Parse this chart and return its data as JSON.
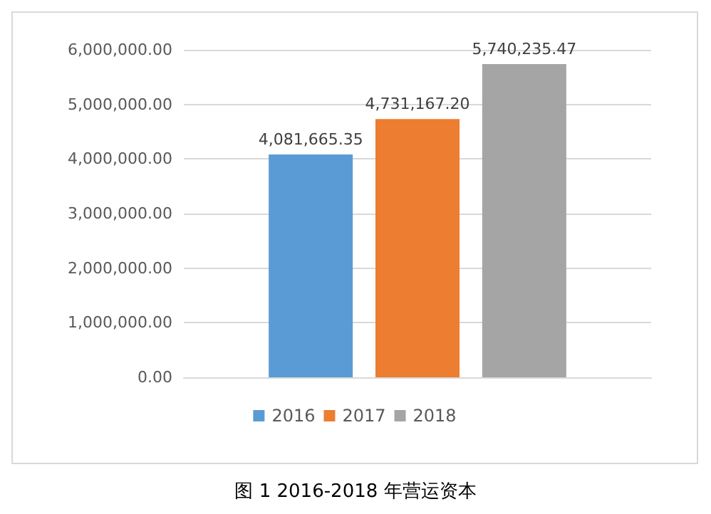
{
  "chart_data": {
    "type": "bar",
    "categories": [
      null
    ],
    "series": [
      {
        "name": "2016",
        "color": "#5b9bd5",
        "values": [
          4081665.35
        ],
        "value_labels": [
          "4,081,665.35"
        ]
      },
      {
        "name": "2017",
        "color": "#ed7d31",
        "values": [
          4731167.2
        ],
        "value_labels": [
          "4,731,167.20"
        ]
      },
      {
        "name": "2018",
        "color": "#a5a5a5",
        "values": [
          5740235.47
        ],
        "value_labels": [
          "5,740,235.47"
        ]
      }
    ],
    "ylim": [
      0,
      6000000
    ],
    "yticks": [
      {
        "value": 0,
        "label": "0.00"
      },
      {
        "value": 1000000,
        "label": "1,000,000.00"
      },
      {
        "value": 2000000,
        "label": "2,000,000.00"
      },
      {
        "value": 3000000,
        "label": "3,000,000.00"
      },
      {
        "value": 4000000,
        "label": "4,000,000.00"
      },
      {
        "value": 5000000,
        "label": "5,000,000.00"
      },
      {
        "value": 6000000,
        "label": "6,000,000.00"
      }
    ],
    "grid": "y",
    "legend": "bottom",
    "annotations": [
      "图 1 2016-2018 年营运资本"
    ]
  }
}
